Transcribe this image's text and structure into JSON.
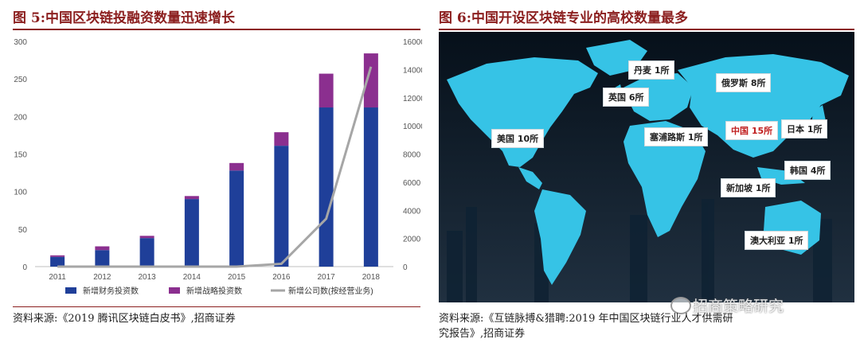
{
  "left_panel": {
    "title": "图 5:中国区块链投融资数量迅速增长",
    "source": "资料来源:《2019 腾讯区块链白皮书》,招商证券"
  },
  "right_panel": {
    "title": "图 6:中国开设区块链专业的高校数量最多",
    "source_line1": "资料来源:《互链脉搏&猎聘:2019 年中国区块链行业人才供需研",
    "source_line2": "究报告》,招商证券",
    "map_labels": [
      {
        "id": "denmark",
        "text": "丹麦 1所",
        "highlight": false
      },
      {
        "id": "russia",
        "text": "俄罗斯 8所",
        "highlight": false
      },
      {
        "id": "uk",
        "text": "英国 6所",
        "highlight": false
      },
      {
        "id": "usa",
        "text": "美国 10所",
        "highlight": false
      },
      {
        "id": "cyprus",
        "text": "塞浦路斯 1所",
        "highlight": false
      },
      {
        "id": "china",
        "text": "中国 15所",
        "highlight": true
      },
      {
        "id": "japan",
        "text": "日本 1所",
        "highlight": false
      },
      {
        "id": "korea",
        "text": "韩国 4所",
        "highlight": false
      },
      {
        "id": "singapore",
        "text": "新加坡 1所",
        "highlight": false
      },
      {
        "id": "australia",
        "text": "澳大利亚 1所",
        "highlight": false
      }
    ],
    "colors": {
      "land": "#36c3e6",
      "ocean": "#06101a"
    }
  },
  "watermark": "招商策略研究",
  "chart_data": {
    "type": "bar",
    "categories": [
      "2011",
      "2012",
      "2013",
      "2014",
      "2015",
      "2016",
      "2017",
      "2018"
    ],
    "series": [
      {
        "name": "新增财务投资数",
        "kind": "bar-stack",
        "axis": "left",
        "color": "#1f3f99",
        "values": [
          13,
          22,
          38,
          90,
          128,
          161,
          212,
          212
        ]
      },
      {
        "name": "新增战略投资数",
        "kind": "bar-stack",
        "axis": "left",
        "color": "#8b2f8f",
        "values": [
          2,
          5,
          3,
          4,
          10,
          18,
          45,
          72
        ]
      },
      {
        "name": "新增公司数(按经营业务)",
        "kind": "line",
        "axis": "right",
        "color": "#a6a6a6",
        "values": [
          0,
          0,
          0,
          0,
          0,
          200,
          3400,
          14200
        ]
      }
    ],
    "y_left": {
      "min": 0,
      "max": 300,
      "ticks": [
        0,
        50,
        100,
        150,
        200,
        250,
        300
      ]
    },
    "y_right": {
      "min": 0,
      "max": 16000,
      "ticks": [
        0,
        2000,
        4000,
        6000,
        8000,
        10000,
        12000,
        14000,
        16000
      ]
    },
    "grid": false,
    "legend": "bottom"
  }
}
